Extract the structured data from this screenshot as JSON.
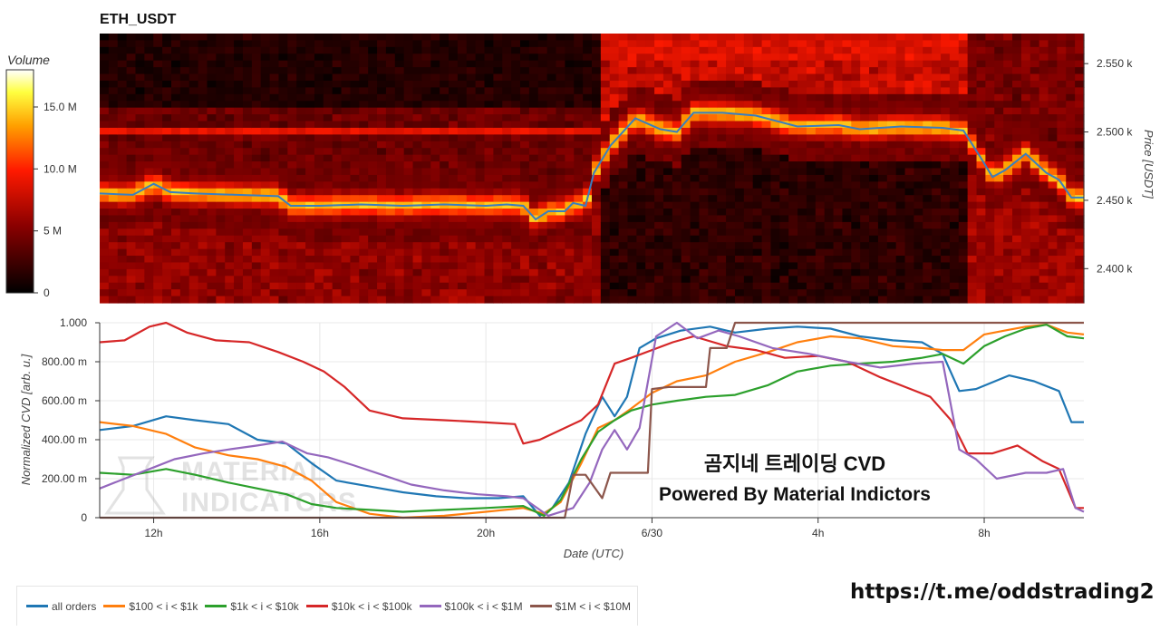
{
  "heatmap": {
    "title": "ETH_USDT",
    "colorbar_label": "Volume",
    "colorbar_ticks": [
      "0",
      "5 M",
      "10.0 M",
      "15.0 M"
    ],
    "y_axis_label": "Price [USDT]",
    "y_ticks": [
      "2.400 k",
      "2.450 k",
      "2.500 k",
      "2.550 k"
    ]
  },
  "cvd": {
    "y_axis_label": "Normalized CVD [arb. u.]",
    "y_ticks": [
      "0",
      "200.00 m",
      "400.00 m",
      "600.00 m",
      "800.00 m",
      "1.000"
    ],
    "x_ticks": [
      "12h",
      "16h",
      "20h",
      "6/30",
      "4h",
      "8h"
    ],
    "x_axis_label": "Date (UTC)",
    "overlay_line1": "곰지네 트레이딩 CVD",
    "overlay_line2": "Powered By Material Indictors",
    "watermark_line1": "MATERIAL",
    "watermark_line2": "INDICATORS"
  },
  "legend": [
    {
      "label": "all orders",
      "color": "#1f77b4"
    },
    {
      "label": "$100 < i < $1k",
      "color": "#ff7f0e"
    },
    {
      "label": "$1k < i < $10k",
      "color": "#2ca02c"
    },
    {
      "label": "$10k < i < $100k",
      "color": "#d62728"
    },
    {
      "label": "$100k < i < $1M",
      "color": "#9467bd"
    },
    {
      "label": "$1M < i < $10M",
      "color": "#8c564b"
    }
  ],
  "footer_link": "https://t.me/oddstrading2",
  "chart_data": [
    {
      "type": "heatmap",
      "title": "ETH_USDT",
      "x_range_hours": [
        10.7,
        34.4
      ],
      "y_range": [
        2375,
        2572
      ],
      "ylabel": "Price [USDT]",
      "colorbar": {
        "label": "Volume",
        "range": [
          0,
          18000000
        ]
      },
      "price_line": {
        "color": "#3a7ebf",
        "x": [
          10.7,
          11.5,
          12,
          12.4,
          13,
          14,
          15,
          15.3,
          16,
          17,
          18,
          19,
          20,
          20.5,
          20.9,
          21.2,
          21.5,
          21.9,
          22.1,
          22.4,
          22.6,
          23.0,
          23.6,
          24.2,
          24.6,
          25,
          25.7,
          26.5,
          27.5,
          28.5,
          29,
          30,
          31,
          31.5,
          31.9,
          32.2,
          32.5,
          33,
          33.5,
          33.8,
          34.1,
          34.4
        ],
        "y": [
          2455,
          2454,
          2462,
          2456,
          2455,
          2454,
          2453,
          2446,
          2446,
          2447,
          2446,
          2447,
          2446,
          2447,
          2446,
          2436,
          2442,
          2442,
          2448,
          2446,
          2470,
          2490,
          2510,
          2502,
          2500,
          2514,
          2514,
          2512,
          2504,
          2505,
          2502,
          2504,
          2503,
          2501,
          2482,
          2467,
          2472,
          2484,
          2470,
          2465,
          2452,
          2452
        ]
      }
    },
    {
      "type": "line",
      "xlabel": "Date (UTC)",
      "ylabel": "Normalized CVD [arb. u.]",
      "x_range_hours": [
        10.7,
        34.4
      ],
      "ylim": [
        0,
        1
      ],
      "x_tick_hours": [
        12,
        16,
        20,
        24,
        28,
        32
      ],
      "series": [
        {
          "name": "all orders",
          "color": "#1f77b4",
          "x": [
            10.7,
            11.5,
            12.3,
            13,
            13.8,
            14.5,
            15.2,
            15.8,
            16.4,
            17.2,
            18,
            18.8,
            19.5,
            20.3,
            20.9,
            21.3,
            21.6,
            22,
            22.4,
            22.8,
            23.1,
            23.4,
            23.7,
            24.1,
            24.7,
            25.4,
            26,
            26.8,
            27.5,
            28.3,
            29,
            29.8,
            30.5,
            31,
            31.4,
            31.8,
            32.6,
            33.2,
            33.8,
            34.1,
            34.4
          ],
          "y": [
            0.45,
            0.47,
            0.52,
            0.5,
            0.48,
            0.4,
            0.38,
            0.28,
            0.19,
            0.16,
            0.13,
            0.11,
            0.1,
            0.1,
            0.11,
            0.01,
            0.05,
            0.18,
            0.43,
            0.62,
            0.52,
            0.62,
            0.87,
            0.92,
            0.96,
            0.98,
            0.95,
            0.97,
            0.98,
            0.97,
            0.93,
            0.91,
            0.9,
            0.84,
            0.65,
            0.66,
            0.73,
            0.7,
            0.65,
            0.49,
            0.49
          ]
        },
        {
          "name": "$100 < i < $1k",
          "color": "#ff7f0e",
          "x": [
            10.7,
            11.5,
            12.3,
            13,
            13.8,
            14.5,
            15.2,
            15.8,
            16.4,
            17.2,
            18,
            19,
            20,
            20.9,
            21.4,
            21.8,
            22.3,
            22.7,
            23.1,
            23.5,
            24,
            24.6,
            25.3,
            26,
            26.8,
            27.5,
            28.3,
            29,
            29.8,
            30.5,
            31,
            31.5,
            32,
            32.5,
            33,
            33.5,
            34,
            34.4
          ],
          "y": [
            0.49,
            0.47,
            0.43,
            0.36,
            0.32,
            0.3,
            0.26,
            0.19,
            0.08,
            0.02,
            0.0,
            0.01,
            0.03,
            0.05,
            0.02,
            0.08,
            0.28,
            0.46,
            0.5,
            0.56,
            0.64,
            0.7,
            0.73,
            0.8,
            0.85,
            0.9,
            0.93,
            0.92,
            0.88,
            0.87,
            0.86,
            0.86,
            0.94,
            0.96,
            0.98,
            0.99,
            0.95,
            0.94
          ]
        },
        {
          "name": "$1k < i < $10k",
          "color": "#2ca02c",
          "x": [
            10.7,
            11.5,
            12.3,
            13,
            13.8,
            14.5,
            15.2,
            15.8,
            16.4,
            17.2,
            18,
            19,
            20,
            20.9,
            21.4,
            21.8,
            22.3,
            22.7,
            23.1,
            23.5,
            24,
            24.6,
            25.3,
            26,
            26.8,
            27.5,
            28.3,
            29,
            29.8,
            30.5,
            31,
            31.5,
            32,
            32.5,
            33,
            33.5,
            34,
            34.4
          ],
          "y": [
            0.23,
            0.22,
            0.25,
            0.22,
            0.18,
            0.15,
            0.12,
            0.07,
            0.05,
            0.04,
            0.03,
            0.04,
            0.05,
            0.06,
            0.01,
            0.09,
            0.3,
            0.44,
            0.5,
            0.55,
            0.58,
            0.6,
            0.62,
            0.63,
            0.68,
            0.75,
            0.78,
            0.79,
            0.8,
            0.82,
            0.84,
            0.79,
            0.88,
            0.93,
            0.97,
            0.99,
            0.93,
            0.92
          ]
        },
        {
          "name": "$10k < i < $100k",
          "color": "#d62728",
          "x": [
            10.7,
            11.3,
            11.9,
            12.3,
            12.8,
            13.5,
            14.3,
            15,
            15.6,
            16.1,
            16.6,
            17.2,
            18,
            19,
            19.9,
            20.7,
            20.9,
            21.3,
            21.8,
            22.3,
            22.7,
            23.1,
            23.5,
            24,
            24.5,
            25,
            25.8,
            26.5,
            27.2,
            28,
            28.7,
            29.5,
            30.1,
            30.7,
            31.2,
            31.6,
            32.2,
            32.8,
            33.4,
            33.8,
            34.2,
            34.4
          ],
          "y": [
            0.9,
            0.91,
            0.98,
            1.0,
            0.95,
            0.91,
            0.9,
            0.85,
            0.8,
            0.75,
            0.67,
            0.55,
            0.51,
            0.5,
            0.49,
            0.48,
            0.38,
            0.4,
            0.45,
            0.5,
            0.58,
            0.79,
            0.82,
            0.86,
            0.9,
            0.93,
            0.88,
            0.86,
            0.82,
            0.83,
            0.8,
            0.72,
            0.67,
            0.62,
            0.5,
            0.33,
            0.33,
            0.37,
            0.29,
            0.25,
            0.05,
            0.05
          ]
        },
        {
          "name": "$100k < i < $1M",
          "color": "#9467bd",
          "x": [
            10.7,
            11.3,
            11.9,
            12.5,
            13.2,
            13.8,
            14.5,
            15.1,
            15.7,
            16.2,
            16.8,
            17.5,
            18.2,
            19,
            19.8,
            20.5,
            20.9,
            21.5,
            22.1,
            22.5,
            22.8,
            23.1,
            23.4,
            23.7,
            24.1,
            24.6,
            25.1,
            25.6,
            26.1,
            26.9,
            27.8,
            28.7,
            29.5,
            30.3,
            31,
            31.4,
            31.8,
            32.3,
            33,
            33.5,
            33.9,
            34.2,
            34.4
          ],
          "y": [
            0.15,
            0.2,
            0.25,
            0.3,
            0.33,
            0.35,
            0.37,
            0.39,
            0.33,
            0.31,
            0.27,
            0.22,
            0.17,
            0.14,
            0.12,
            0.11,
            0.1,
            0.01,
            0.05,
            0.18,
            0.35,
            0.45,
            0.35,
            0.46,
            0.93,
            1.0,
            0.92,
            0.96,
            0.93,
            0.87,
            0.84,
            0.8,
            0.77,
            0.79,
            0.8,
            0.35,
            0.3,
            0.2,
            0.23,
            0.23,
            0.25,
            0.05,
            0.03
          ]
        },
        {
          "name": "$1M < i < $10M",
          "color": "#8c564b",
          "x": [
            10.7,
            21.9,
            22.1,
            22.4,
            22.8,
            23.0,
            23.3,
            23.6,
            23.9,
            24.0,
            24.4,
            25.3,
            25.4,
            25.8,
            26.0,
            34.4
          ],
          "y": [
            0.0,
            0.0,
            0.22,
            0.22,
            0.1,
            0.23,
            0.23,
            0.23,
            0.23,
            0.66,
            0.67,
            0.67,
            0.87,
            0.87,
            1.0,
            1.0
          ]
        }
      ]
    }
  ]
}
